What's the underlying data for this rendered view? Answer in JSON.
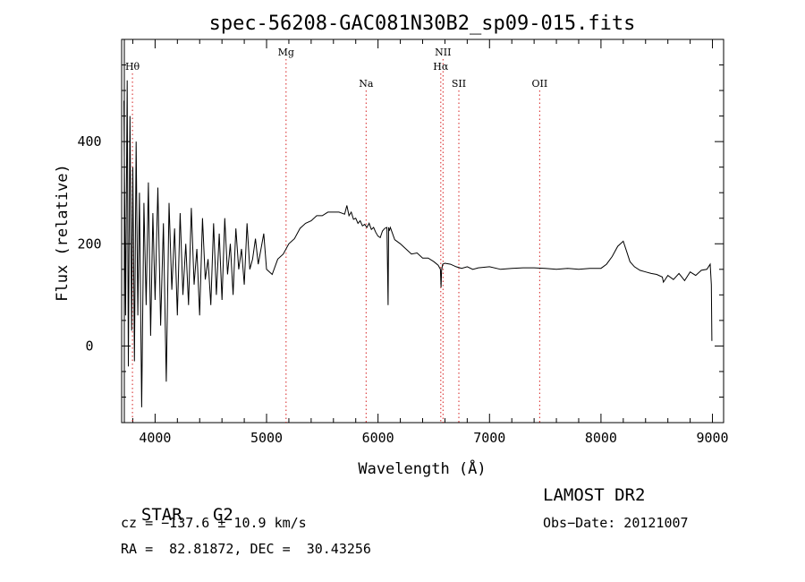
{
  "chart_data": {
    "type": "line",
    "title": "spec-56208-GAC081N30B2_sp09-015.fits",
    "xlabel": "Wavelength (Å)",
    "ylabel": "Flux (relative)",
    "xlim": [
      3700,
      9100
    ],
    "ylim": [
      -150,
      600
    ],
    "xticks": [
      4000,
      5000,
      6000,
      7000,
      8000,
      9000
    ],
    "yticks": [
      0,
      200,
      400
    ],
    "grid": false,
    "series": [
      {
        "x": [
          3720,
          3735,
          3750,
          3760,
          3775,
          3790,
          3800,
          3815,
          3830,
          3845,
          3860,
          3880,
          3900,
          3920,
          3940,
          3960,
          3980,
          4000,
          4025,
          4050,
          4075,
          4100,
          4125,
          4150,
          4175,
          4200,
          4225,
          4250,
          4275,
          4300,
          4325,
          4350,
          4375,
          4400,
          4425,
          4450,
          4475,
          4500,
          4525,
          4550,
          4575,
          4600,
          4625,
          4650,
          4675,
          4700,
          4725,
          4750,
          4775,
          4800,
          4825,
          4850,
          4875,
          4900,
          4925,
          4950,
          4975,
          5000,
          5050,
          5100,
          5150,
          5200,
          5250,
          5300,
          5350,
          5400,
          5450,
          5500,
          5550,
          5600,
          5650,
          5700,
          5720,
          5740,
          5760,
          5780,
          5800,
          5820,
          5840,
          5860,
          5880,
          5900,
          5920,
          5940,
          5960,
          5980,
          6000,
          6020,
          6040,
          6060,
          6080,
          6090,
          6095,
          6100,
          6110,
          6150,
          6200,
          6250,
          6300,
          6350,
          6400,
          6450,
          6500,
          6540,
          6560,
          6565,
          6570,
          6580,
          6600,
          6650,
          6700,
          6750,
          6800,
          6850,
          6900,
          7000,
          7100,
          7200,
          7300,
          7400,
          7500,
          7600,
          7700,
          7800,
          7900,
          8000,
          8050,
          8100,
          8150,
          8200,
          8230,
          8260,
          8300,
          8350,
          8400,
          8450,
          8500,
          8550,
          8560,
          8600,
          8650,
          8700,
          8750,
          8800,
          8850,
          8900,
          8950,
          8980,
          8990,
          8995
        ],
        "y": [
          480,
          60,
          520,
          -40,
          450,
          30,
          350,
          -30,
          400,
          60,
          300,
          -120,
          280,
          80,
          320,
          20,
          260,
          90,
          310,
          40,
          240,
          -70,
          280,
          110,
          230,
          60,
          260,
          100,
          200,
          80,
          270,
          120,
          190,
          60,
          250,
          130,
          170,
          80,
          240,
          100,
          220,
          90,
          250,
          140,
          200,
          100,
          230,
          150,
          190,
          120,
          240,
          150,
          170,
          210,
          160,
          190,
          220,
          150,
          140,
          170,
          180,
          200,
          210,
          230,
          240,
          245,
          255,
          255,
          262,
          262,
          262,
          258,
          275,
          255,
          262,
          248,
          250,
          240,
          245,
          235,
          238,
          232,
          240,
          228,
          232,
          222,
          215,
          212,
          225,
          230,
          232,
          80,
          232,
          225,
          232,
          208,
          200,
          190,
          180,
          182,
          172,
          172,
          165,
          158,
          150,
          115,
          148,
          160,
          162,
          160,
          155,
          152,
          155,
          150,
          153,
          155,
          150,
          152,
          153,
          153,
          152,
          150,
          152,
          150,
          152,
          152,
          160,
          175,
          195,
          205,
          185,
          165,
          155,
          148,
          145,
          142,
          140,
          135,
          125,
          138,
          130,
          142,
          128,
          145,
          138,
          148,
          150,
          160,
          120,
          10
        ]
      }
    ],
    "annotations": [
      {
        "label": "Hθ",
        "x": 3797,
        "row": 1
      },
      {
        "label": "Mg",
        "x": 5175,
        "row": 0
      },
      {
        "label": "Na",
        "x": 5893,
        "row": 2
      },
      {
        "label": "NII",
        "x": 6583,
        "row": 0
      },
      {
        "label": "Hα",
        "x": 6563,
        "row": 1
      },
      {
        "label": "SII",
        "x": 6725,
        "row": 2
      },
      {
        "label": "OII",
        "x": 7450,
        "row": 2
      }
    ],
    "line_color": "#000000",
    "marker_color": "#d62020"
  },
  "info": {
    "class_label": "STAR",
    "subclass": "G2",
    "redshift": "cz = −137.6 ± 10.9 km/s",
    "coords": "RA =  82.81872, DEC =  30.43256",
    "survey": "LAMOST DR2",
    "obs_date": "Obs−Date: 20121007"
  }
}
